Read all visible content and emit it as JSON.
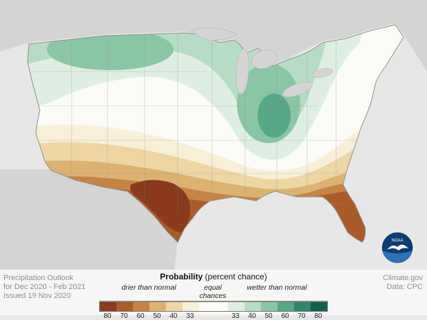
{
  "colors": {
    "background": "#e7e7e7",
    "outside_land": "#d4d4d4",
    "lakes": "#d4d4d4",
    "border": "#8f8f8f",
    "equal_chances": "#fbfbf8",
    "logo_circle": "#0b3d70",
    "logo_lower": "#2f6fb4"
  },
  "legend": {
    "title_bold": "Probability",
    "title_rest": "(percent chance)",
    "drier_label": "drier than normal",
    "equal_label": "equal chances",
    "wetter_label": "wetter than normal",
    "drier_values": [
      "80",
      "70",
      "60",
      "50",
      "40",
      "33"
    ],
    "drier_colors": [
      "#8a3a1e",
      "#a95c28",
      "#c58444",
      "#dcb271",
      "#edd6a4",
      "#f8efd9"
    ],
    "wetter_values": [
      "33",
      "40",
      "50",
      "60",
      "70",
      "80"
    ],
    "wetter_colors": [
      "#dfeee3",
      "#b7dcc5",
      "#8ac5a5",
      "#57a886",
      "#2c8a6a",
      "#10604f"
    ]
  },
  "footer": {
    "left_lines": [
      "Precipitation Outlook",
      "for Dec 2020 - Feb 2021",
      "Issued 19 Nov 2020"
    ],
    "right_lines": [
      "Climate.gov",
      "Data: CPC"
    ]
  },
  "logo": {
    "label": "NOAA"
  }
}
